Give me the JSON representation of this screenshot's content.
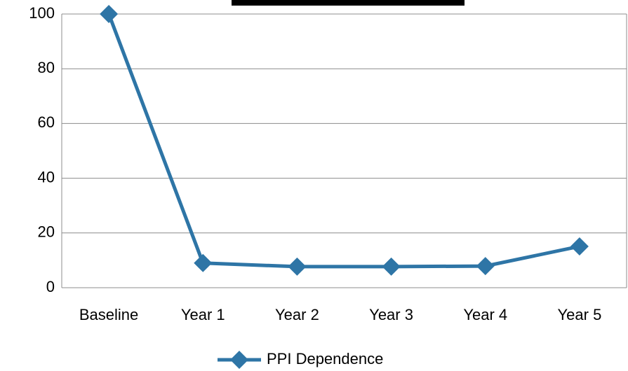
{
  "chart_data": {
    "type": "line",
    "categories": [
      "Baseline",
      "Year 1",
      "Year 2",
      "Year 3",
      "Year 4",
      "Year 5"
    ],
    "series": [
      {
        "name": "PPI Dependence",
        "color": "#2e75a6",
        "values": [
          100,
          9.0,
          7.7,
          7.7,
          7.9,
          15.1
        ]
      }
    ],
    "ylim": [
      0,
      100
    ],
    "yticks": [
      0,
      20,
      40,
      60,
      80,
      100
    ],
    "grid": true,
    "legend": "bottom"
  }
}
